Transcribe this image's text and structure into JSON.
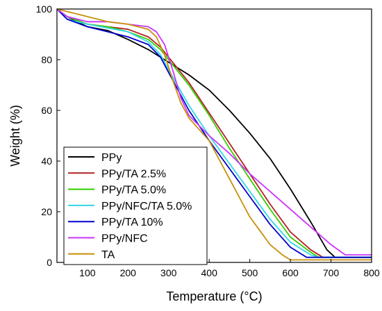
{
  "chart_data": {
    "type": "line",
    "xlabel": "Temperature (°C)",
    "ylabel": "Weight (%)",
    "xlim": [
      25,
      800
    ],
    "ylim": [
      0,
      100
    ],
    "xticks": [
      100,
      200,
      300,
      400,
      500,
      600,
      700,
      800
    ],
    "yticks": [
      0,
      20,
      40,
      60,
      80,
      100
    ],
    "legend_position": "bottom-left",
    "grid": false,
    "series": [
      {
        "name": "PPy",
        "color": "#000000",
        "points": [
          [
            25,
            100
          ],
          [
            50,
            97
          ],
          [
            100,
            93
          ],
          [
            150,
            91.5
          ],
          [
            200,
            88
          ],
          [
            250,
            84
          ],
          [
            300,
            79
          ],
          [
            350,
            74
          ],
          [
            400,
            68
          ],
          [
            450,
            60
          ],
          [
            500,
            51
          ],
          [
            550,
            41
          ],
          [
            600,
            29
          ],
          [
            650,
            16
          ],
          [
            690,
            5
          ],
          [
            710,
            2
          ],
          [
            800,
            2
          ]
        ]
      },
      {
        "name": "PPy/TA 2.5%",
        "color": "#b22222",
        "points": [
          [
            25,
            100
          ],
          [
            50,
            97
          ],
          [
            100,
            94
          ],
          [
            150,
            93
          ],
          [
            200,
            92
          ],
          [
            250,
            89
          ],
          [
            280,
            85
          ],
          [
            300,
            81
          ],
          [
            350,
            71
          ],
          [
            400,
            59
          ],
          [
            450,
            47
          ],
          [
            500,
            35
          ],
          [
            550,
            23
          ],
          [
            600,
            12
          ],
          [
            650,
            5
          ],
          [
            680,
            2
          ],
          [
            800,
            2
          ]
        ]
      },
      {
        "name": "PPy/TA 5.0%",
        "color": "#33cc00",
        "points": [
          [
            25,
            100
          ],
          [
            50,
            97
          ],
          [
            100,
            94
          ],
          [
            150,
            93
          ],
          [
            200,
            91
          ],
          [
            250,
            88
          ],
          [
            280,
            84
          ],
          [
            300,
            80
          ],
          [
            350,
            70
          ],
          [
            400,
            58
          ],
          [
            450,
            45
          ],
          [
            500,
            33
          ],
          [
            550,
            21
          ],
          [
            600,
            10
          ],
          [
            650,
            4
          ],
          [
            670,
            2
          ],
          [
            800,
            2
          ]
        ]
      },
      {
        "name": "PPy/NFC/TA 5.0%",
        "color": "#33d6e6",
        "points": [
          [
            25,
            100
          ],
          [
            50,
            96
          ],
          [
            100,
            94
          ],
          [
            150,
            92.5
          ],
          [
            200,
            91
          ],
          [
            250,
            87
          ],
          [
            280,
            82
          ],
          [
            300,
            76
          ],
          [
            350,
            62
          ],
          [
            400,
            50
          ],
          [
            450,
            39
          ],
          [
            500,
            28
          ],
          [
            550,
            17
          ],
          [
            600,
            8
          ],
          [
            650,
            3
          ],
          [
            670,
            2
          ],
          [
            800,
            2
          ]
        ]
      },
      {
        "name": "PPy/TA 10%",
        "color": "#0000cc",
        "points": [
          [
            25,
            100
          ],
          [
            50,
            96
          ],
          [
            100,
            93
          ],
          [
            150,
            91
          ],
          [
            200,
            89
          ],
          [
            250,
            86
          ],
          [
            280,
            81
          ],
          [
            300,
            75
          ],
          [
            350,
            60
          ],
          [
            400,
            48
          ],
          [
            450,
            37
          ],
          [
            500,
            26
          ],
          [
            550,
            15
          ],
          [
            600,
            6
          ],
          [
            640,
            2
          ],
          [
            800,
            2
          ]
        ]
      },
      {
        "name": "PPy/NFC",
        "color": "#cc33ff",
        "points": [
          [
            25,
            100
          ],
          [
            50,
            97
          ],
          [
            100,
            95
          ],
          [
            150,
            95
          ],
          [
            200,
            94
          ],
          [
            250,
            93
          ],
          [
            270,
            91
          ],
          [
            290,
            86
          ],
          [
            310,
            76
          ],
          [
            330,
            65
          ],
          [
            350,
            58
          ],
          [
            400,
            50
          ],
          [
            450,
            43
          ],
          [
            500,
            35
          ],
          [
            550,
            28
          ],
          [
            600,
            21
          ],
          [
            650,
            14
          ],
          [
            700,
            7
          ],
          [
            735,
            3
          ],
          [
            800,
            3
          ]
        ]
      },
      {
        "name": "TA",
        "color": "#c8900a",
        "points": [
          [
            25,
            100
          ],
          [
            50,
            99
          ],
          [
            100,
            97
          ],
          [
            150,
            95
          ],
          [
            200,
            94
          ],
          [
            250,
            92
          ],
          [
            270,
            89
          ],
          [
            290,
            82
          ],
          [
            310,
            72
          ],
          [
            330,
            63
          ],
          [
            350,
            57
          ],
          [
            400,
            48
          ],
          [
            450,
            33
          ],
          [
            500,
            18
          ],
          [
            550,
            7
          ],
          [
            580,
            3
          ],
          [
            600,
            1
          ],
          [
            800,
            1
          ]
        ]
      }
    ]
  }
}
